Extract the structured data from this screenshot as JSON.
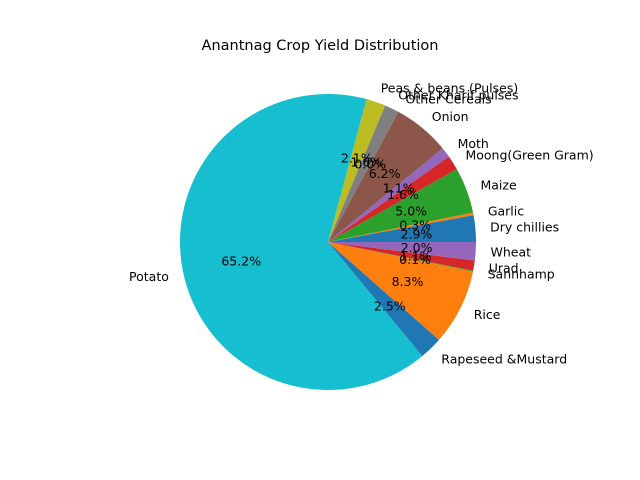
{
  "chart_data": {
    "type": "pie",
    "title": "Anantnag Crop Yield Distribution",
    "start_angle_deg": 0,
    "direction": "counterclockwise",
    "slices": [
      {
        "label": "Dry chillies",
        "value": 2.9,
        "pct_label": "2.9%",
        "color": "#1f77b4"
      },
      {
        "label": "Garlic",
        "value": 0.3,
        "pct_label": "0.3%",
        "color": "#ff7f0e"
      },
      {
        "label": "Maize",
        "value": 5.0,
        "pct_label": "5.0%",
        "color": "#2ca02c"
      },
      {
        "label": "Moong(Green Gram)",
        "value": 1.6,
        "pct_label": "1.6%",
        "color": "#d62728"
      },
      {
        "label": "Moth",
        "value": 1.1,
        "pct_label": "1.1%",
        "color": "#9467bd"
      },
      {
        "label": "Onion",
        "value": 6.2,
        "pct_label": "6.2%",
        "color": "#8c564b"
      },
      {
        "label": "Other Cereals",
        "value": 0.0,
        "pct_label": "0.0%",
        "color": "#e377c2"
      },
      {
        "label": "Other Kharif pulses",
        "value": 1.6,
        "pct_label": "1.6%",
        "color": "#7f7f7f"
      },
      {
        "label": "Peas & beans (Pulses)",
        "value": 2.1,
        "pct_label": "2.1%",
        "color": "#bcbd22"
      },
      {
        "label": "Potato",
        "value": 65.2,
        "pct_label": "65.2%",
        "color": "#17becf"
      },
      {
        "label": "Rapeseed &Mustard",
        "value": 2.5,
        "pct_label": "2.5%",
        "color": "#1f77b4"
      },
      {
        "label": "Rice",
        "value": 8.3,
        "pct_label": "8.3%",
        "color": "#ff7f0e"
      },
      {
        "label": "Sannhamp",
        "value": 0.1,
        "pct_label": "0.1%",
        "color": "#2ca02c"
      },
      {
        "label": "Urad",
        "value": 1.1,
        "pct_label": "1.1%",
        "color": "#d62728"
      },
      {
        "label": "Wheat",
        "value": 2.0,
        "pct_label": "2.0%",
        "color": "#9467bd"
      }
    ]
  }
}
